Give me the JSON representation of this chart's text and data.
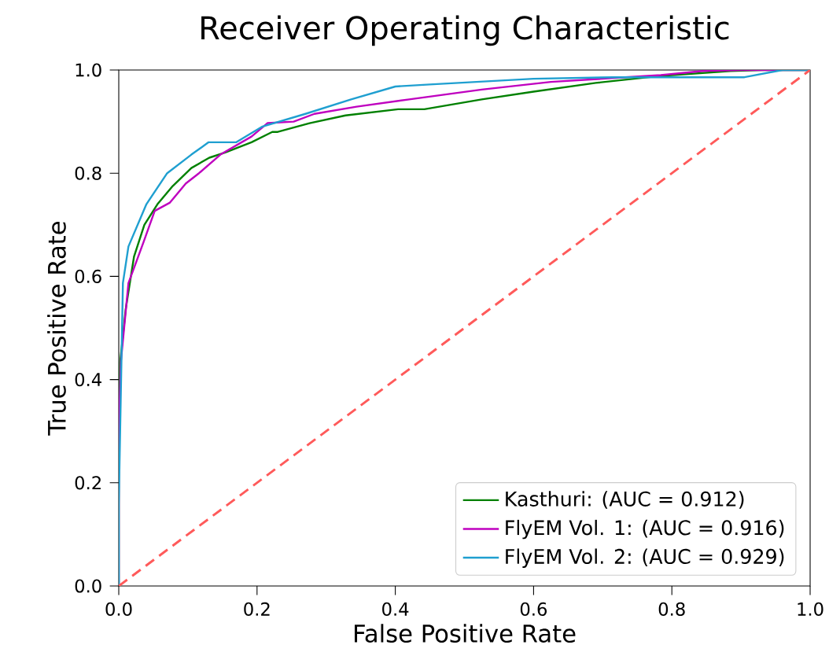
{
  "chart_data": {
    "type": "line",
    "title": "Receiver Operating Characteristic",
    "xlabel": "False Positive Rate",
    "ylabel": "True Positive Rate",
    "xlim": [
      0,
      1
    ],
    "ylim": [
      0,
      1
    ],
    "xticks": [
      {
        "value": 0,
        "label": "0.0"
      },
      0.2,
      0.4,
      0.6,
      0.8,
      {
        "value": 1,
        "label": "1.0"
      }
    ],
    "yticks": [
      {
        "value": 0,
        "label": "0.0"
      },
      0.2,
      0.4,
      0.6,
      0.8,
      {
        "value": 1,
        "label": "1.0"
      }
    ],
    "legend": "bottom right",
    "grid": false,
    "marker": "none",
    "series": [
      {
        "name": "Kasthuri: (AUC = 0.912)",
        "color": "#008000",
        "x": [
          0,
          0,
          0.002,
          0.01,
          0.022,
          0.037,
          0.056,
          0.078,
          0.105,
          0.131,
          0.154,
          0.192,
          0.222,
          0.23,
          0.276,
          0.328,
          0.404,
          0.442,
          0.525,
          0.6,
          0.69,
          0.78,
          0.885,
          0.93,
          1
        ],
        "values": [
          0,
          0.3,
          0.434,
          0.536,
          0.638,
          0.7,
          0.74,
          0.775,
          0.81,
          0.83,
          0.84,
          0.86,
          0.88,
          0.88,
          0.897,
          0.912,
          0.924,
          0.924,
          0.943,
          0.958,
          0.975,
          0.988,
          0.998,
          1,
          1
        ]
      },
      {
        "name": "FlyEM Vol. 1: (AUC = 0.916)",
        "color": "#bf00bf",
        "x": [
          0,
          0,
          0.003,
          0.014,
          0.036,
          0.052,
          0.074,
          0.097,
          0.116,
          0.147,
          0.192,
          0.215,
          0.253,
          0.283,
          0.344,
          0.42,
          0.525,
          0.625,
          0.784,
          0.845,
          0.9,
          1
        ],
        "values": [
          0,
          0.3,
          0.434,
          0.587,
          0.667,
          0.727,
          0.743,
          0.78,
          0.8,
          0.836,
          0.871,
          0.897,
          0.9,
          0.915,
          0.929,
          0.943,
          0.962,
          0.977,
          0.99,
          0.998,
          1,
          1
        ]
      },
      {
        "name": "FlyEM Vol. 2: (AUC = 0.929)",
        "color": "#1f9fd0",
        "x": [
          0,
          0,
          0.006,
          0.014,
          0.04,
          0.07,
          0.105,
          0.13,
          0.17,
          0.207,
          0.27,
          0.336,
          0.4,
          0.45,
          0.6,
          0.715,
          0.905,
          0.96,
          1
        ],
        "values": [
          0,
          0.16,
          0.587,
          0.658,
          0.74,
          0.8,
          0.836,
          0.86,
          0.86,
          0.89,
          0.915,
          0.943,
          0.968,
          0.972,
          0.983,
          0.986,
          0.986,
          1,
          1
        ]
      },
      {
        "color": "#ff5a5a",
        "line_style": "dashed",
        "x": [
          0,
          1
        ],
        "values": [
          0,
          1
        ]
      }
    ]
  }
}
